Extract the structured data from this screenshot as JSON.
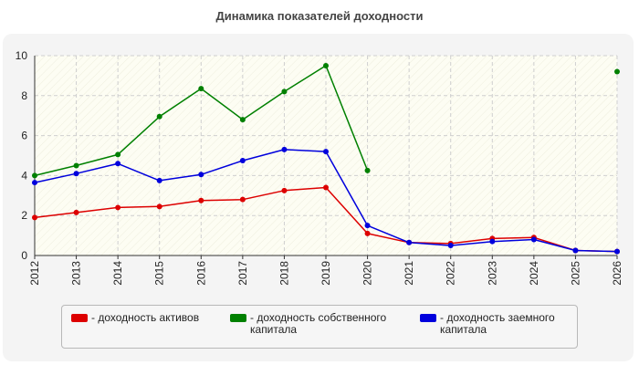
{
  "chart_data": {
    "type": "line",
    "title": "Динамика показателей доходности",
    "x": [
      "2012",
      "2013",
      "2014",
      "2015",
      "2016",
      "2017",
      "2018",
      "2019",
      "2020",
      "2021",
      "2022",
      "2023",
      "2024",
      "2025",
      "2026"
    ],
    "ylim": [
      0,
      10
    ],
    "yticks": [
      0,
      2,
      4,
      6,
      8,
      10
    ],
    "grid": true,
    "legend_position": "bottom",
    "series": [
      {
        "name": "- доходность активов",
        "color": "#dd0000",
        "values": [
          1.9,
          2.15,
          2.4,
          2.45,
          2.75,
          2.8,
          3.25,
          3.4,
          1.1,
          0.65,
          0.6,
          0.85,
          0.9,
          0.25,
          0.2
        ]
      },
      {
        "name": "- доходность собственного капитала",
        "color": "#008000",
        "values": [
          4.0,
          4.5,
          5.05,
          6.95,
          8.35,
          6.8,
          8.2,
          9.5,
          4.25,
          null,
          null,
          null,
          null,
          null,
          9.2
        ]
      },
      {
        "name": "- доходность заемного капитала",
        "color": "#0000dd",
        "values": [
          3.65,
          4.1,
          4.6,
          3.75,
          4.05,
          4.75,
          5.3,
          5.2,
          1.5,
          0.65,
          0.5,
          0.7,
          0.8,
          0.25,
          0.2
        ]
      }
    ]
  }
}
